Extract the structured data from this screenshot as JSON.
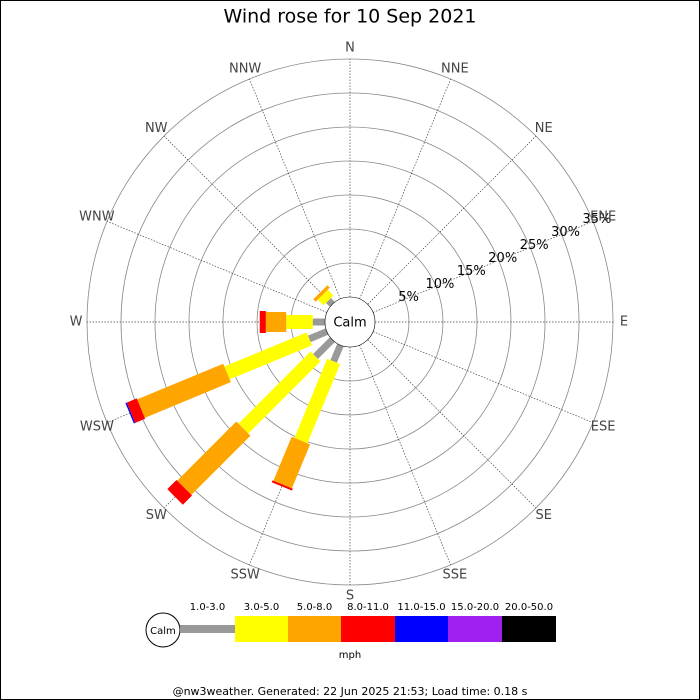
{
  "chart_data": {
    "type": "windrose",
    "title": "Wind rose for 10 Sep 2021",
    "categories": [
      "N",
      "NNE",
      "NE",
      "ENE",
      "E",
      "ESE",
      "SE",
      "SSE",
      "S",
      "SSW",
      "SW",
      "WSW",
      "W",
      "WNW",
      "NW",
      "NNW"
    ],
    "center_label": "Calm",
    "rlim": [
      0,
      35
    ],
    "rticks": [
      {
        "value": 5,
        "label": "5%"
      },
      {
        "value": 10,
        "label": "10%"
      },
      {
        "value": 15,
        "label": "15%"
      },
      {
        "value": 20,
        "label": "20%"
      },
      {
        "value": 25,
        "label": "25%"
      },
      {
        "value": 30,
        "label": "30%"
      },
      {
        "value": 35,
        "label": "35%"
      }
    ],
    "series": [
      {
        "name": "1.0-3.0",
        "color": "#999999",
        "values": [
          0,
          0,
          0,
          0,
          0,
          0,
          0,
          0,
          0,
          2.6,
          3.5,
          2.8,
          1.8,
          0,
          0.8,
          0
        ]
      },
      {
        "name": "3.0-5.0",
        "color": "#ffff00",
        "values": [
          0,
          0,
          0,
          0,
          0,
          0,
          0,
          0,
          0,
          12.6,
          15.0,
          13.1,
          3.9,
          0,
          1.2,
          0
        ]
      },
      {
        "name": "5.0-8.0",
        "color": "#ffa500",
        "values": [
          0,
          0,
          0,
          0,
          0,
          0,
          0,
          0,
          0,
          7.0,
          12.3,
          13.7,
          3.0,
          0,
          0.5,
          0
        ]
      },
      {
        "name": "8.0-11.0",
        "color": "#ff0000",
        "values": [
          0,
          0,
          0,
          0,
          0,
          0,
          0,
          0,
          0,
          0.3,
          1.9,
          1.6,
          0.9,
          0,
          0,
          0
        ]
      },
      {
        "name": "11.0-15.0",
        "color": "#0000ff",
        "values": [
          0,
          0,
          0,
          0,
          0,
          0,
          0,
          0,
          0,
          0,
          0,
          0.2,
          0,
          0,
          0,
          0
        ]
      },
      {
        "name": "15.0-20.0",
        "color": "#a020f0",
        "values": [
          0,
          0,
          0,
          0,
          0,
          0,
          0,
          0,
          0,
          0,
          0,
          0,
          0,
          0,
          0,
          0
        ]
      },
      {
        "name": "20.0-50.0",
        "color": "#000000",
        "values": [
          0,
          0,
          0,
          0,
          0,
          0,
          0,
          0,
          0,
          0,
          0,
          0,
          0,
          0,
          0,
          0
        ]
      }
    ],
    "legend_unit": "mph",
    "footer": "@nw3weather. Generated: 22 Jun 2025 21:53; Load time: 0.18 s"
  }
}
